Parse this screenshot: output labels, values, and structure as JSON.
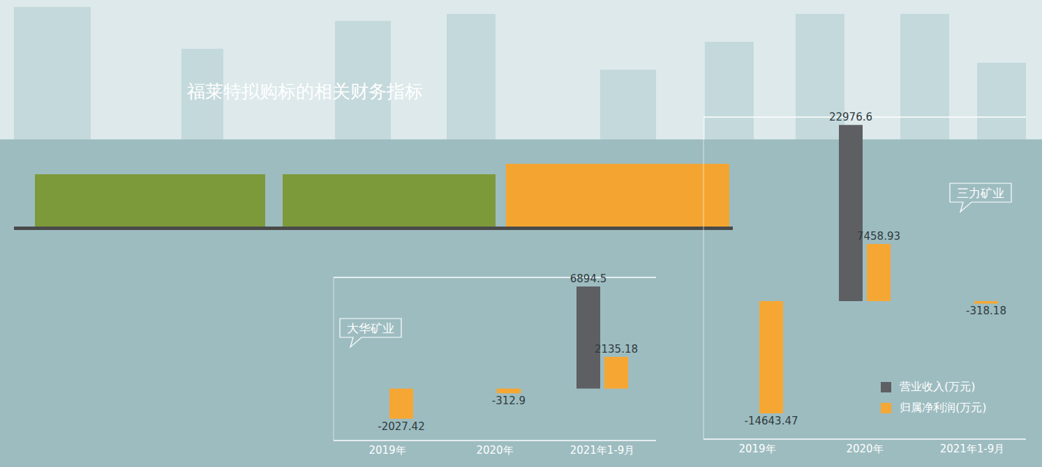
{
  "title": "福莱特拟购标的相关财务指标",
  "chart_data": [
    {
      "type": "bar",
      "title": "大华矿业",
      "categories": [
        "2019年",
        "2020年",
        "2021年1-9月"
      ],
      "series": [
        {
          "name": "营业收入(万元)",
          "color": "#5e5f63",
          "values": [
            0,
            0,
            6894.5
          ]
        },
        {
          "name": "归属净利润(万元)",
          "color": "#f6a733",
          "values": [
            -2027.42,
            -312.9,
            2135.18
          ]
        }
      ],
      "ylim": [
        -3500,
        7500
      ],
      "yticks": [
        0
      ],
      "grid": true,
      "data_labels": true,
      "tick_labels": "x"
    },
    {
      "type": "bar",
      "title": "三力矿业",
      "categories": [
        "2019年",
        "2020年",
        "2021年1-9月"
      ],
      "series": [
        {
          "name": "营业收入(万元)",
          "color": "#5e5f63",
          "values": [
            0,
            22976.6,
            0
          ]
        },
        {
          "name": "归属净利润(万元)",
          "color": "#f6a733",
          "values": [
            -14643.47,
            7458.93,
            -318.18
          ]
        }
      ],
      "ylim": [
        -18000,
        24000
      ],
      "yticks": [
        0
      ],
      "grid": true,
      "data_labels": true,
      "tick_labels": "x",
      "legend": "lower right"
    }
  ]
}
